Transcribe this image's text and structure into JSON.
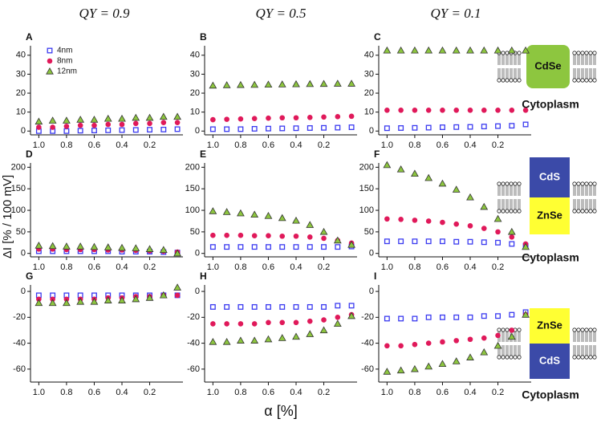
{
  "column_titles": [
    "QY = 0.9",
    "QY = 0.5",
    "QY = 0.1"
  ],
  "y_label": "ΔI  [% / 100 mV]",
  "x_label": "α [%]",
  "diagrams": [
    {
      "labels": [
        "CdSe"
      ],
      "caption": "Cytoplasm"
    },
    {
      "labels": [
        "CdS",
        "ZnSe"
      ],
      "caption": "Cytoplasm"
    },
    {
      "labels": [
        "ZnSe",
        "CdS"
      ],
      "caption": "Cytoplasm"
    }
  ],
  "chart_data": [
    {
      "type": "scatter",
      "label": "A",
      "legend": "upper left",
      "x": [
        1,
        0.9,
        0.8,
        0.7,
        0.6,
        0.5,
        0.4,
        0.3,
        0.2,
        0.1,
        0
      ],
      "xlim": [
        1.06,
        -0.04
      ],
      "xticks": [
        {
          "value": 1,
          "label": "1.0"
        },
        0.8,
        0.6,
        0.4,
        0.2
      ],
      "ylim": [
        -2,
        45
      ],
      "yticks": [
        0,
        10,
        20,
        30,
        40
      ],
      "series": [
        {
          "name": "4nm",
          "color": "#3a3af0",
          "marker": "square",
          "values": [
            0,
            0,
            0,
            0.2,
            0.3,
            0.4,
            0.5,
            0.6,
            0.7,
            0.8,
            1
          ]
        },
        {
          "name": "8nm",
          "color": "#e0195a",
          "marker": "circle",
          "values": [
            2,
            2,
            2.5,
            3,
            3,
            3.5,
            3.5,
            4,
            4,
            4.5,
            4.5
          ]
        },
        {
          "name": "12nm",
          "color": "#8dc63f",
          "marker": "triangle",
          "values": [
            5,
            5.5,
            5.5,
            6,
            6,
            6.5,
            6.5,
            7,
            7,
            7.5,
            7.5
          ]
        }
      ]
    },
    {
      "type": "scatter",
      "label": "B",
      "x": [
        1,
        0.9,
        0.8,
        0.7,
        0.6,
        0.5,
        0.4,
        0.3,
        0.2,
        0.1,
        0
      ],
      "xlim": [
        1.06,
        -0.04
      ],
      "xticks": [
        {
          "value": 1,
          "label": "1.0"
        },
        0.8,
        0.6,
        0.4,
        0.2
      ],
      "ylim": [
        -2,
        45
      ],
      "yticks": [
        0,
        10,
        20,
        30,
        40
      ],
      "series": [
        {
          "color": "#3a3af0",
          "marker": "square",
          "values": [
            1,
            1,
            1,
            1.2,
            1.3,
            1.4,
            1.5,
            1.6,
            1.7,
            1.8,
            2
          ]
        },
        {
          "color": "#e0195a",
          "marker": "circle",
          "values": [
            6,
            6.2,
            6.4,
            6.6,
            6.8,
            7,
            7,
            7.2,
            7.4,
            7.6,
            7.8
          ]
        },
        {
          "color": "#8dc63f",
          "marker": "triangle",
          "values": [
            24,
            24.2,
            24.3,
            24.4,
            24.5,
            24.6,
            24.7,
            24.8,
            24.9,
            25,
            25
          ]
        }
      ]
    },
    {
      "type": "scatter",
      "label": "C",
      "x": [
        1,
        0.9,
        0.8,
        0.7,
        0.6,
        0.5,
        0.4,
        0.3,
        0.2,
        0.1,
        0
      ],
      "xlim": [
        1.06,
        -0.04
      ],
      "xticks": [
        {
          "value": 1,
          "label": "1.0"
        },
        0.8,
        0.6,
        0.4,
        0.2
      ],
      "ylim": [
        -2,
        45
      ],
      "yticks": [
        0,
        10,
        20,
        30,
        40
      ],
      "series": [
        {
          "color": "#3a3af0",
          "marker": "square",
          "values": [
            1.5,
            1.6,
            1.7,
            1.8,
            2,
            2.1,
            2.2,
            2.4,
            2.6,
            2.8,
            3.5
          ]
        },
        {
          "color": "#e0195a",
          "marker": "circle",
          "values": [
            11,
            11,
            11,
            11,
            11,
            11,
            11,
            11,
            11,
            11,
            11
          ]
        },
        {
          "color": "#8dc63f",
          "marker": "triangle",
          "values": [
            42.5,
            42.5,
            42.5,
            42.5,
            42.5,
            42.5,
            42.5,
            42.5,
            42.5,
            42.5,
            42.5
          ]
        }
      ]
    },
    {
      "type": "scatter",
      "label": "D",
      "x": [
        1,
        0.9,
        0.8,
        0.7,
        0.6,
        0.5,
        0.4,
        0.3,
        0.2,
        0.1,
        0
      ],
      "xlim": [
        1.06,
        -0.04
      ],
      "xticks": [
        {
          "value": 1,
          "label": "1.0"
        },
        0.8,
        0.6,
        0.4,
        0.2
      ],
      "ylim": [
        -8,
        210
      ],
      "yticks": [
        0,
        50,
        100,
        150,
        200
      ],
      "series": [
        {
          "color": "#3a3af0",
          "marker": "square",
          "values": [
            5,
            5,
            5,
            5,
            5,
            5,
            4,
            4,
            4,
            3,
            2
          ]
        },
        {
          "color": "#e0195a",
          "marker": "circle",
          "values": [
            10,
            10,
            9,
            9,
            9,
            8,
            8,
            7,
            6,
            5,
            3
          ]
        },
        {
          "color": "#8dc63f",
          "marker": "triangle",
          "values": [
            18,
            17,
            16,
            16,
            15,
            14,
            13,
            12,
            10,
            8,
            0
          ]
        }
      ]
    },
    {
      "type": "scatter",
      "label": "E",
      "x": [
        1,
        0.9,
        0.8,
        0.7,
        0.6,
        0.5,
        0.4,
        0.3,
        0.2,
        0.1,
        0
      ],
      "xlim": [
        1.06,
        -0.04
      ],
      "xticks": [
        {
          "value": 1,
          "label": "1.0"
        },
        0.8,
        0.6,
        0.4,
        0.2
      ],
      "ylim": [
        -8,
        210
      ],
      "yticks": [
        0,
        50,
        100,
        150,
        200
      ],
      "series": [
        {
          "color": "#3a3af0",
          "marker": "square",
          "values": [
            15,
            15,
            15,
            15,
            15,
            15,
            15,
            15,
            15,
            15,
            16
          ]
        },
        {
          "color": "#e0195a",
          "marker": "circle",
          "values": [
            42,
            42,
            42,
            41,
            41,
            40,
            40,
            38,
            35,
            30,
            24
          ]
        },
        {
          "color": "#8dc63f",
          "marker": "triangle",
          "values": [
            98,
            96,
            93,
            90,
            87,
            82,
            76,
            66,
            50,
            30,
            20
          ]
        }
      ]
    },
    {
      "type": "scatter",
      "label": "F",
      "x": [
        1,
        0.9,
        0.8,
        0.7,
        0.6,
        0.5,
        0.4,
        0.3,
        0.2,
        0.1,
        0
      ],
      "xlim": [
        1.06,
        -0.04
      ],
      "xticks": [
        {
          "value": 1,
          "label": "1.0"
        },
        0.8,
        0.6,
        0.4,
        0.2
      ],
      "ylim": [
        -8,
        210
      ],
      "yticks": [
        0,
        50,
        100,
        150,
        200
      ],
      "series": [
        {
          "color": "#3a3af0",
          "marker": "square",
          "values": [
            28,
            28,
            28,
            28,
            28,
            27,
            27,
            26,
            25,
            22,
            18
          ]
        },
        {
          "color": "#e0195a",
          "marker": "circle",
          "values": [
            80,
            79,
            77,
            75,
            72,
            68,
            64,
            58,
            50,
            38,
            22
          ]
        },
        {
          "color": "#8dc63f",
          "marker": "triangle",
          "values": [
            205,
            195,
            185,
            175,
            162,
            148,
            130,
            108,
            80,
            50,
            15
          ]
        }
      ]
    },
    {
      "type": "scatter",
      "label": "G",
      "x": [
        1,
        0.9,
        0.8,
        0.7,
        0.6,
        0.5,
        0.4,
        0.3,
        0.2,
        0.1,
        0
      ],
      "xlim": [
        1.06,
        -0.04
      ],
      "xticks": [
        {
          "value": 1,
          "label": "1.0"
        },
        0.8,
        0.6,
        0.4,
        0.2
      ],
      "ylim": [
        -70,
        5
      ],
      "yticks": [
        -60,
        -40,
        -20,
        0
      ],
      "series": [
        {
          "color": "#3a3af0",
          "marker": "square",
          "values": [
            -3,
            -3,
            -3,
            -3,
            -3,
            -3,
            -3,
            -3,
            -3,
            -3,
            -3
          ]
        },
        {
          "color": "#e0195a",
          "marker": "circle",
          "values": [
            -6,
            -6,
            -6,
            -6,
            -6,
            -5,
            -5,
            -4,
            -4,
            -3,
            -3
          ]
        },
        {
          "color": "#8dc63f",
          "marker": "triangle",
          "values": [
            -9,
            -9,
            -9,
            -8,
            -8,
            -7,
            -7,
            -6,
            -5,
            -3,
            3
          ]
        }
      ]
    },
    {
      "type": "scatter",
      "label": "H",
      "x": [
        1,
        0.9,
        0.8,
        0.7,
        0.6,
        0.5,
        0.4,
        0.3,
        0.2,
        0.1,
        0
      ],
      "xlim": [
        1.06,
        -0.04
      ],
      "xticks": [
        {
          "value": 1,
          "label": "1.0"
        },
        0.8,
        0.6,
        0.4,
        0.2
      ],
      "ylim": [
        -70,
        5
      ],
      "yticks": [
        -60,
        -40,
        -20,
        0
      ],
      "series": [
        {
          "color": "#3a3af0",
          "marker": "square",
          "values": [
            -12,
            -12,
            -12,
            -12,
            -12,
            -12,
            -12,
            -12,
            -12,
            -11,
            -11
          ]
        },
        {
          "color": "#e0195a",
          "marker": "circle",
          "values": [
            -25,
            -25,
            -25,
            -25,
            -24,
            -24,
            -24,
            -23,
            -22,
            -20,
            -18
          ]
        },
        {
          "color": "#8dc63f",
          "marker": "triangle",
          "values": [
            -39,
            -39,
            -38,
            -38,
            -37,
            -36,
            -35,
            -33,
            -30,
            -25,
            -19
          ]
        }
      ]
    },
    {
      "type": "scatter",
      "label": "I",
      "x": [
        1,
        0.9,
        0.8,
        0.7,
        0.6,
        0.5,
        0.4,
        0.3,
        0.2,
        0.1,
        0
      ],
      "xlim": [
        1.06,
        -0.04
      ],
      "xticks": [
        {
          "value": 1,
          "label": "1.0"
        },
        0.8,
        0.6,
        0.4,
        0.2
      ],
      "ylim": [
        -70,
        5
      ],
      "yticks": [
        -60,
        -40,
        -20,
        0
      ],
      "series": [
        {
          "color": "#3a3af0",
          "marker": "square",
          "values": [
            -21,
            -21,
            -21,
            -20,
            -20,
            -20,
            -20,
            -19,
            -19,
            -18,
            -16
          ]
        },
        {
          "color": "#e0195a",
          "marker": "circle",
          "values": [
            -42,
            -42,
            -41,
            -40,
            -39,
            -38,
            -37,
            -36,
            -34,
            -30,
            -18
          ]
        },
        {
          "color": "#8dc63f",
          "marker": "triangle",
          "values": [
            -62,
            -61,
            -60,
            -58,
            -56,
            -54,
            -51,
            -47,
            -42,
            -35,
            -18
          ]
        }
      ]
    }
  ]
}
